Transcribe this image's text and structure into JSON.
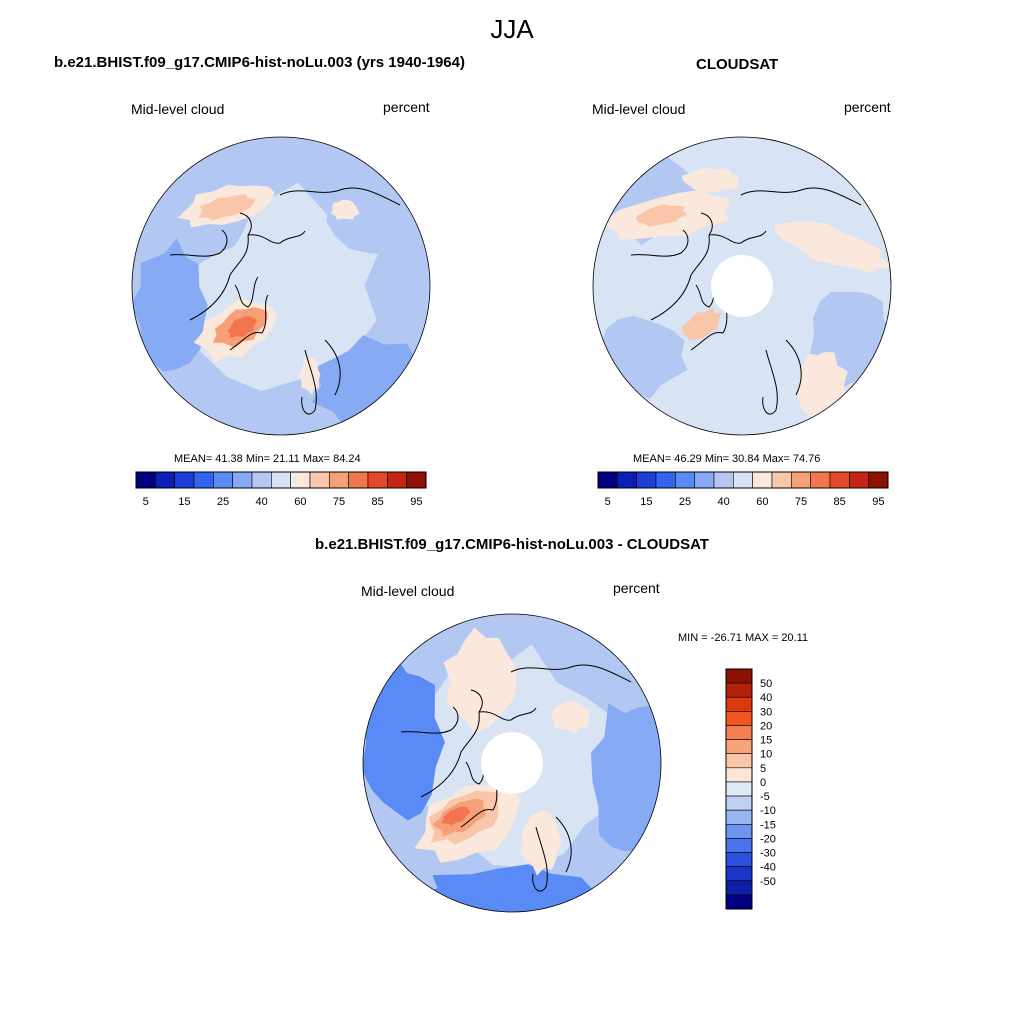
{
  "figure": {
    "title": "JJA"
  },
  "panels": {
    "model": {
      "title": "b.e21.BHIST.f09_g17.CMIP6-hist-noLu.003 (yrs 1940-1964)",
      "left_label": "Mid-level cloud",
      "right_label": "percent",
      "stats": "MEAN=  41.38  Min=  21.11  Max=  84.24",
      "mean": 41.38,
      "min": 21.11,
      "max": 84.24,
      "has_polar_hole": false
    },
    "obs": {
      "title": "CLOUDSAT",
      "left_label": "Mid-level cloud",
      "right_label": "percent",
      "stats": "MEAN=  46.29  Min=  30.84  Max=  74.76",
      "mean": 46.29,
      "min": 30.84,
      "max": 74.76,
      "has_polar_hole": true
    },
    "diff": {
      "title": "b.e21.BHIST.f09_g17.CMIP6-hist-noLu.003 - CLOUDSAT",
      "left_label": "Mid-level cloud",
      "right_label": "percent",
      "stats": "MIN = -26.71 MAX =  20.11",
      "min": -26.71,
      "max": 20.11,
      "has_polar_hole": true
    }
  },
  "colorbars": {
    "abs": {
      "colors": [
        "#000080",
        "#0b1fb3",
        "#1c3ed9",
        "#3363ef",
        "#5a8af5",
        "#86aaf3",
        "#b2c8f2",
        "#d8e4f4",
        "#fbe8dc",
        "#f9c6aa",
        "#f6a07a",
        "#f27550",
        "#e4482c",
        "#c42812",
        "#8e1004"
      ],
      "tick_labels": [
        "5",
        "15",
        "25",
        "40",
        "60",
        "75",
        "85",
        "95"
      ]
    },
    "diff": {
      "colors_top_to_bottom": [
        "#8e1004",
        "#b42108",
        "#d93a10",
        "#f2561e",
        "#f6804f",
        "#f7a47c",
        "#f9c7a8",
        "#fbe6d8",
        "#dfeaf7",
        "#bed1f5",
        "#98b6f3",
        "#6f94ef",
        "#4a72ea",
        "#2c51e0",
        "#1a36c8",
        "#0d1fa6",
        "#000080"
      ],
      "tick_labels": [
        "50",
        "40",
        "30",
        "20",
        "15",
        "10",
        "5",
        "0",
        "-5",
        "-10",
        "-15",
        "-20",
        "-30",
        "-40",
        "-50"
      ]
    }
  },
  "map": {
    "projection": "north-polar-stereographic",
    "contour_levels_abs": [
      5,
      10,
      15,
      20,
      25,
      30,
      40,
      50,
      60,
      70,
      75,
      80,
      85,
      90,
      95
    ],
    "contour_levels_diff": [
      -50,
      -40,
      -30,
      -20,
      -15,
      -10,
      -5,
      0,
      5,
      10,
      15,
      20,
      30,
      40,
      50
    ]
  }
}
